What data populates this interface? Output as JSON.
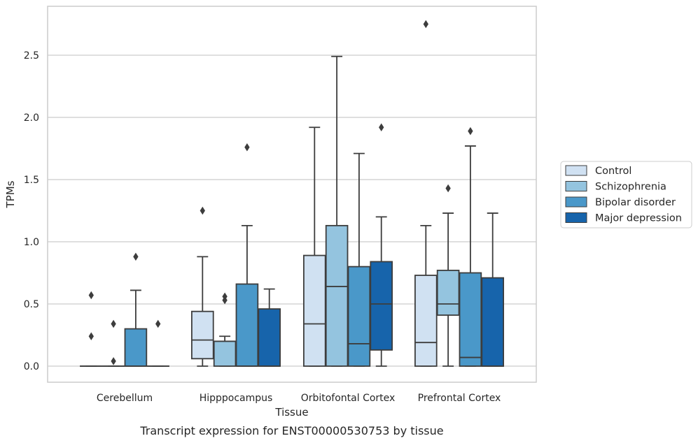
{
  "chart_data": {
    "type": "box",
    "xlabel": "Tissue",
    "ylabel": "TPMs",
    "caption": "Transcript expression for ENST00000530753 by tissue",
    "categories": [
      "Cerebellum",
      "Hipppocampus",
      "Orbitofontal Cortex",
      "Prefrontal Cortex"
    ],
    "ylim": [
      -0.13,
      2.88
    ],
    "yticks": [
      "0.0",
      "0.5",
      "1.0",
      "1.5",
      "2.0",
      "2.5"
    ],
    "grid": "horizontal",
    "legend_position": "right",
    "series": [
      {
        "name": "Control",
        "color": "#d0e1f2",
        "boxes": [
          {
            "q1": 0,
            "median": 0,
            "q3": 0,
            "whisker_low": 0,
            "whisker_high": 0,
            "outliers": [
              0.57,
              0.24
            ]
          },
          {
            "q1": 0.06,
            "median": 0.21,
            "q3": 0.44,
            "whisker_low": 0,
            "whisker_high": 0.88,
            "outliers": [
              1.25
            ]
          },
          {
            "q1": 0,
            "median": 0.34,
            "q3": 0.89,
            "whisker_low": 0,
            "whisker_high": 1.92,
            "outliers": []
          },
          {
            "q1": 0,
            "median": 0.19,
            "q3": 0.73,
            "whisker_low": 0,
            "whisker_high": 1.13,
            "outliers": [
              2.75
            ]
          }
        ]
      },
      {
        "name": "Schizophrenia",
        "color": "#94c4df",
        "boxes": [
          {
            "q1": 0,
            "median": 0,
            "q3": 0,
            "whisker_low": 0,
            "whisker_high": 0,
            "outliers": [
              0.34,
              0.04
            ]
          },
          {
            "q1": 0,
            "median": 0.2,
            "q3": 0.2,
            "whisker_low": 0,
            "whisker_high": 0.24,
            "outliers": [
              0.56,
              0.53
            ]
          },
          {
            "q1": 0,
            "median": 0.64,
            "q3": 1.13,
            "whisker_low": 0,
            "whisker_high": 2.49,
            "outliers": []
          },
          {
            "q1": 0.41,
            "median": 0.5,
            "q3": 0.77,
            "whisker_low": 0,
            "whisker_high": 1.23,
            "outliers": [
              1.43
            ]
          }
        ]
      },
      {
        "name": "Bipolar disorder",
        "color": "#4a98c9",
        "boxes": [
          {
            "q1": 0,
            "median": 0,
            "q3": 0.3,
            "whisker_low": 0,
            "whisker_high": 0.61,
            "outliers": [
              0.88
            ]
          },
          {
            "q1": 0,
            "median": 0,
            "q3": 0.66,
            "whisker_low": 0,
            "whisker_high": 1.13,
            "outliers": [
              1.76
            ]
          },
          {
            "q1": 0,
            "median": 0.18,
            "q3": 0.8,
            "whisker_low": 0,
            "whisker_high": 1.71,
            "outliers": []
          },
          {
            "q1": 0,
            "median": 0.07,
            "q3": 0.75,
            "whisker_low": 0,
            "whisker_high": 1.77,
            "outliers": [
              1.89
            ]
          }
        ]
      },
      {
        "name": "Major depression",
        "color": "#1764ab",
        "boxes": [
          {
            "q1": 0,
            "median": 0,
            "q3": 0,
            "whisker_low": 0,
            "whisker_high": 0,
            "outliers": [
              0.34
            ]
          },
          {
            "q1": 0,
            "median": 0,
            "q3": 0.46,
            "whisker_low": 0,
            "whisker_high": 0.62,
            "outliers": []
          },
          {
            "q1": 0.13,
            "median": 0.5,
            "q3": 0.84,
            "whisker_low": 0,
            "whisker_high": 1.2,
            "outliers": [
              1.92
            ]
          },
          {
            "q1": 0,
            "median": 0,
            "q3": 0.71,
            "whisker_low": 0,
            "whisker_high": 1.23,
            "outliers": []
          }
        ]
      }
    ]
  }
}
